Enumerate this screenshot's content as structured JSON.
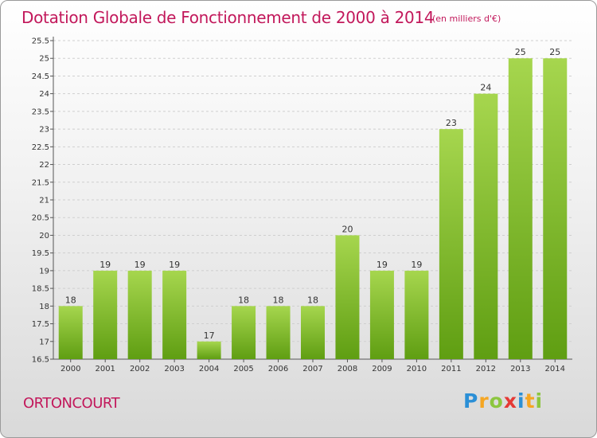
{
  "title": "Dotation Globale de Fonctionnement de 2000 à 2014",
  "subtitle": "(en milliers d'€)",
  "commune": "ORTONCOURT",
  "logo": {
    "text": "Proxiti",
    "letters": [
      {
        "ch": "P",
        "color": "#2b8fd6"
      },
      {
        "ch": "r",
        "color": "#f5a623"
      },
      {
        "ch": "o",
        "color": "#8cc63f"
      },
      {
        "ch": "x",
        "color": "#e53935"
      },
      {
        "ch": "i",
        "color": "#2b8fd6"
      },
      {
        "ch": "t",
        "color": "#f5a623"
      },
      {
        "ch": "i",
        "color": "#8cc63f"
      }
    ]
  },
  "colors": {
    "title": "#c2185b",
    "bar_top": "#a6d64e",
    "bar_bottom": "#5f9e12",
    "grid": "#cfcfcf"
  },
  "chart_data": {
    "type": "bar",
    "categories": [
      "2000",
      "2001",
      "2002",
      "2003",
      "2004",
      "2005",
      "2006",
      "2007",
      "2008",
      "2009",
      "2010",
      "2011",
      "2012",
      "2013",
      "2014"
    ],
    "values": [
      18,
      19,
      19,
      19,
      17,
      18,
      18,
      18,
      20,
      19,
      19,
      23,
      24,
      25,
      25
    ],
    "data_labels": [
      "18",
      "19",
      "19",
      "19",
      "17",
      "18",
      "18",
      "18",
      "20",
      "19",
      "19",
      "23",
      "24",
      "25",
      "25"
    ],
    "ylim": [
      16.5,
      25.5
    ],
    "yticks": [
      "16.5",
      "17",
      "17.5",
      "18",
      "18.5",
      "19",
      "19.5",
      "20",
      "20.5",
      "21",
      "21.5",
      "22",
      "22.5",
      "23",
      "23.5",
      "24",
      "24.5",
      "25",
      "25.5"
    ],
    "grid": true,
    "xlabel": "",
    "ylabel": ""
  }
}
